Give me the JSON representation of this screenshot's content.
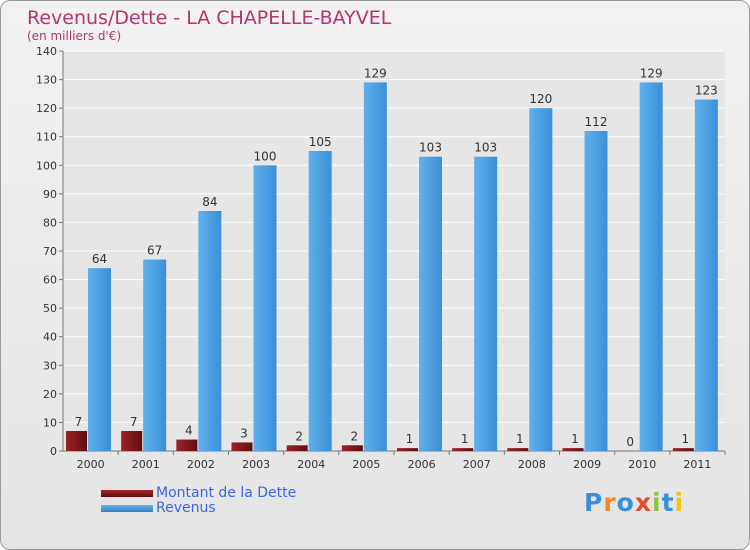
{
  "header": {
    "title": "Revenus/Dette - LA CHAPELLE-BAYVEL",
    "subtitle": "(en milliers d'€)"
  },
  "colors": {
    "title": "#b5336f",
    "dette": "#7a1418",
    "revenus": "#3f99dd",
    "legend_text": "#3a67e0",
    "grid": "#ffffff",
    "axis_text": "#333333"
  },
  "chart_data": {
    "type": "bar",
    "categories": [
      "2000",
      "2001",
      "2002",
      "2003",
      "2004",
      "2005",
      "2006",
      "2007",
      "2008",
      "2009",
      "2010",
      "2011"
    ],
    "series": [
      {
        "name": "Montant de la Dette",
        "values": [
          7,
          7,
          4,
          3,
          2,
          2,
          1,
          1,
          1,
          1,
          0,
          1
        ]
      },
      {
        "name": "Revenus",
        "values": [
          64,
          67,
          84,
          100,
          105,
          129,
          103,
          103,
          120,
          112,
          129,
          123
        ]
      }
    ],
    "ylim": [
      0,
      140
    ],
    "yticks": [
      0,
      10,
      20,
      30,
      40,
      50,
      60,
      70,
      80,
      90,
      100,
      110,
      120,
      130,
      140
    ],
    "grid": true,
    "legend": "bottom-left"
  },
  "legend": {
    "items": [
      {
        "label": "Montant de la Dette",
        "color": "#7a1418"
      },
      {
        "label": "Revenus",
        "color": "#3f99dd"
      }
    ]
  },
  "brand": {
    "letters": [
      {
        "ch": "P",
        "color": "#3a8ed8"
      },
      {
        "ch": "r",
        "color": "#f08a1c"
      },
      {
        "ch": "o",
        "color": "#3a8ed8"
      },
      {
        "ch": "x",
        "color": "#e24b2b"
      },
      {
        "ch": "i",
        "color": "#8cc43c"
      },
      {
        "ch": "t",
        "color": "#3a8ed8"
      },
      {
        "ch": "i",
        "color": "#f0c21c"
      }
    ]
  }
}
